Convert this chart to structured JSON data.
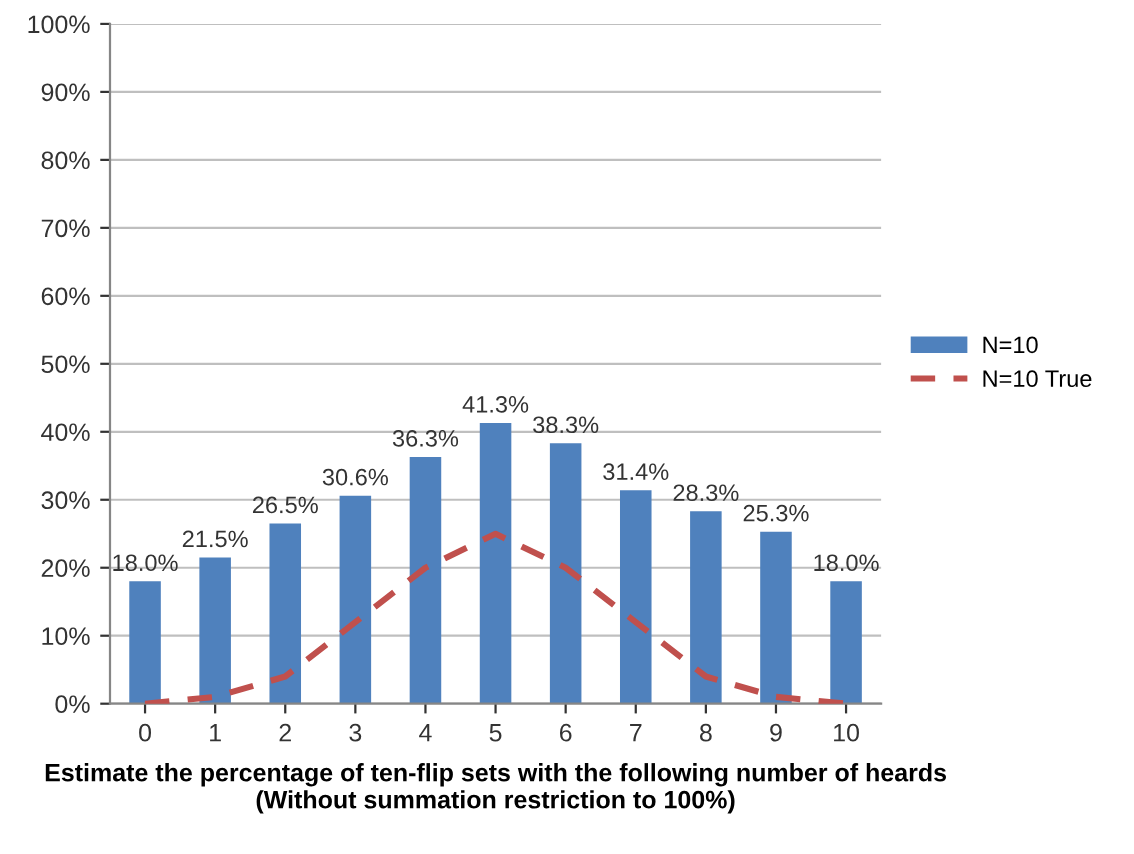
{
  "chart_data": {
    "type": "bar",
    "xlabel": "Estimate the percentage of ten-flip sets with the following number of heards\n(Without summation restriction to 100%)",
    "categories": [
      "0",
      "1",
      "2",
      "3",
      "4",
      "5",
      "6",
      "7",
      "8",
      "9",
      "10"
    ],
    "series": [
      {
        "name": "N=10",
        "color": "#4f81bd",
        "values": [
          18.0,
          21.5,
          26.5,
          30.6,
          36.3,
          41.3,
          38.3,
          31.4,
          28.3,
          25.3,
          18.0
        ],
        "value_labels": [
          "18.0%",
          "21.5%",
          "26.5%",
          "30.6%",
          "36.3%",
          "41.3%",
          "38.3%",
          "31.4%",
          "28.3%",
          "25.3%",
          "18.0%"
        ]
      },
      {
        "name": "N=10 True",
        "type": "line",
        "color": "#c0504d",
        "line_style": "dashed",
        "marker": "none",
        "values": [
          0,
          1,
          4,
          12,
          20,
          25,
          20,
          12,
          4,
          1,
          0
        ]
      }
    ],
    "ylim": [
      0,
      100
    ],
    "yticks": [
      {
        "value": 0,
        "label": "0%"
      },
      {
        "value": 10,
        "label": "10%"
      },
      {
        "value": 20,
        "label": "20%"
      },
      {
        "value": 30,
        "label": "30%"
      },
      {
        "value": 40,
        "label": "40%"
      },
      {
        "value": 50,
        "label": "50%"
      },
      {
        "value": 60,
        "label": "60%"
      },
      {
        "value": 70,
        "label": "70%"
      },
      {
        "value": 80,
        "label": "80%"
      },
      {
        "value": 90,
        "label": "90%"
      },
      {
        "value": 100,
        "label": "100%"
      }
    ],
    "grid": "y",
    "legend": "right"
  }
}
